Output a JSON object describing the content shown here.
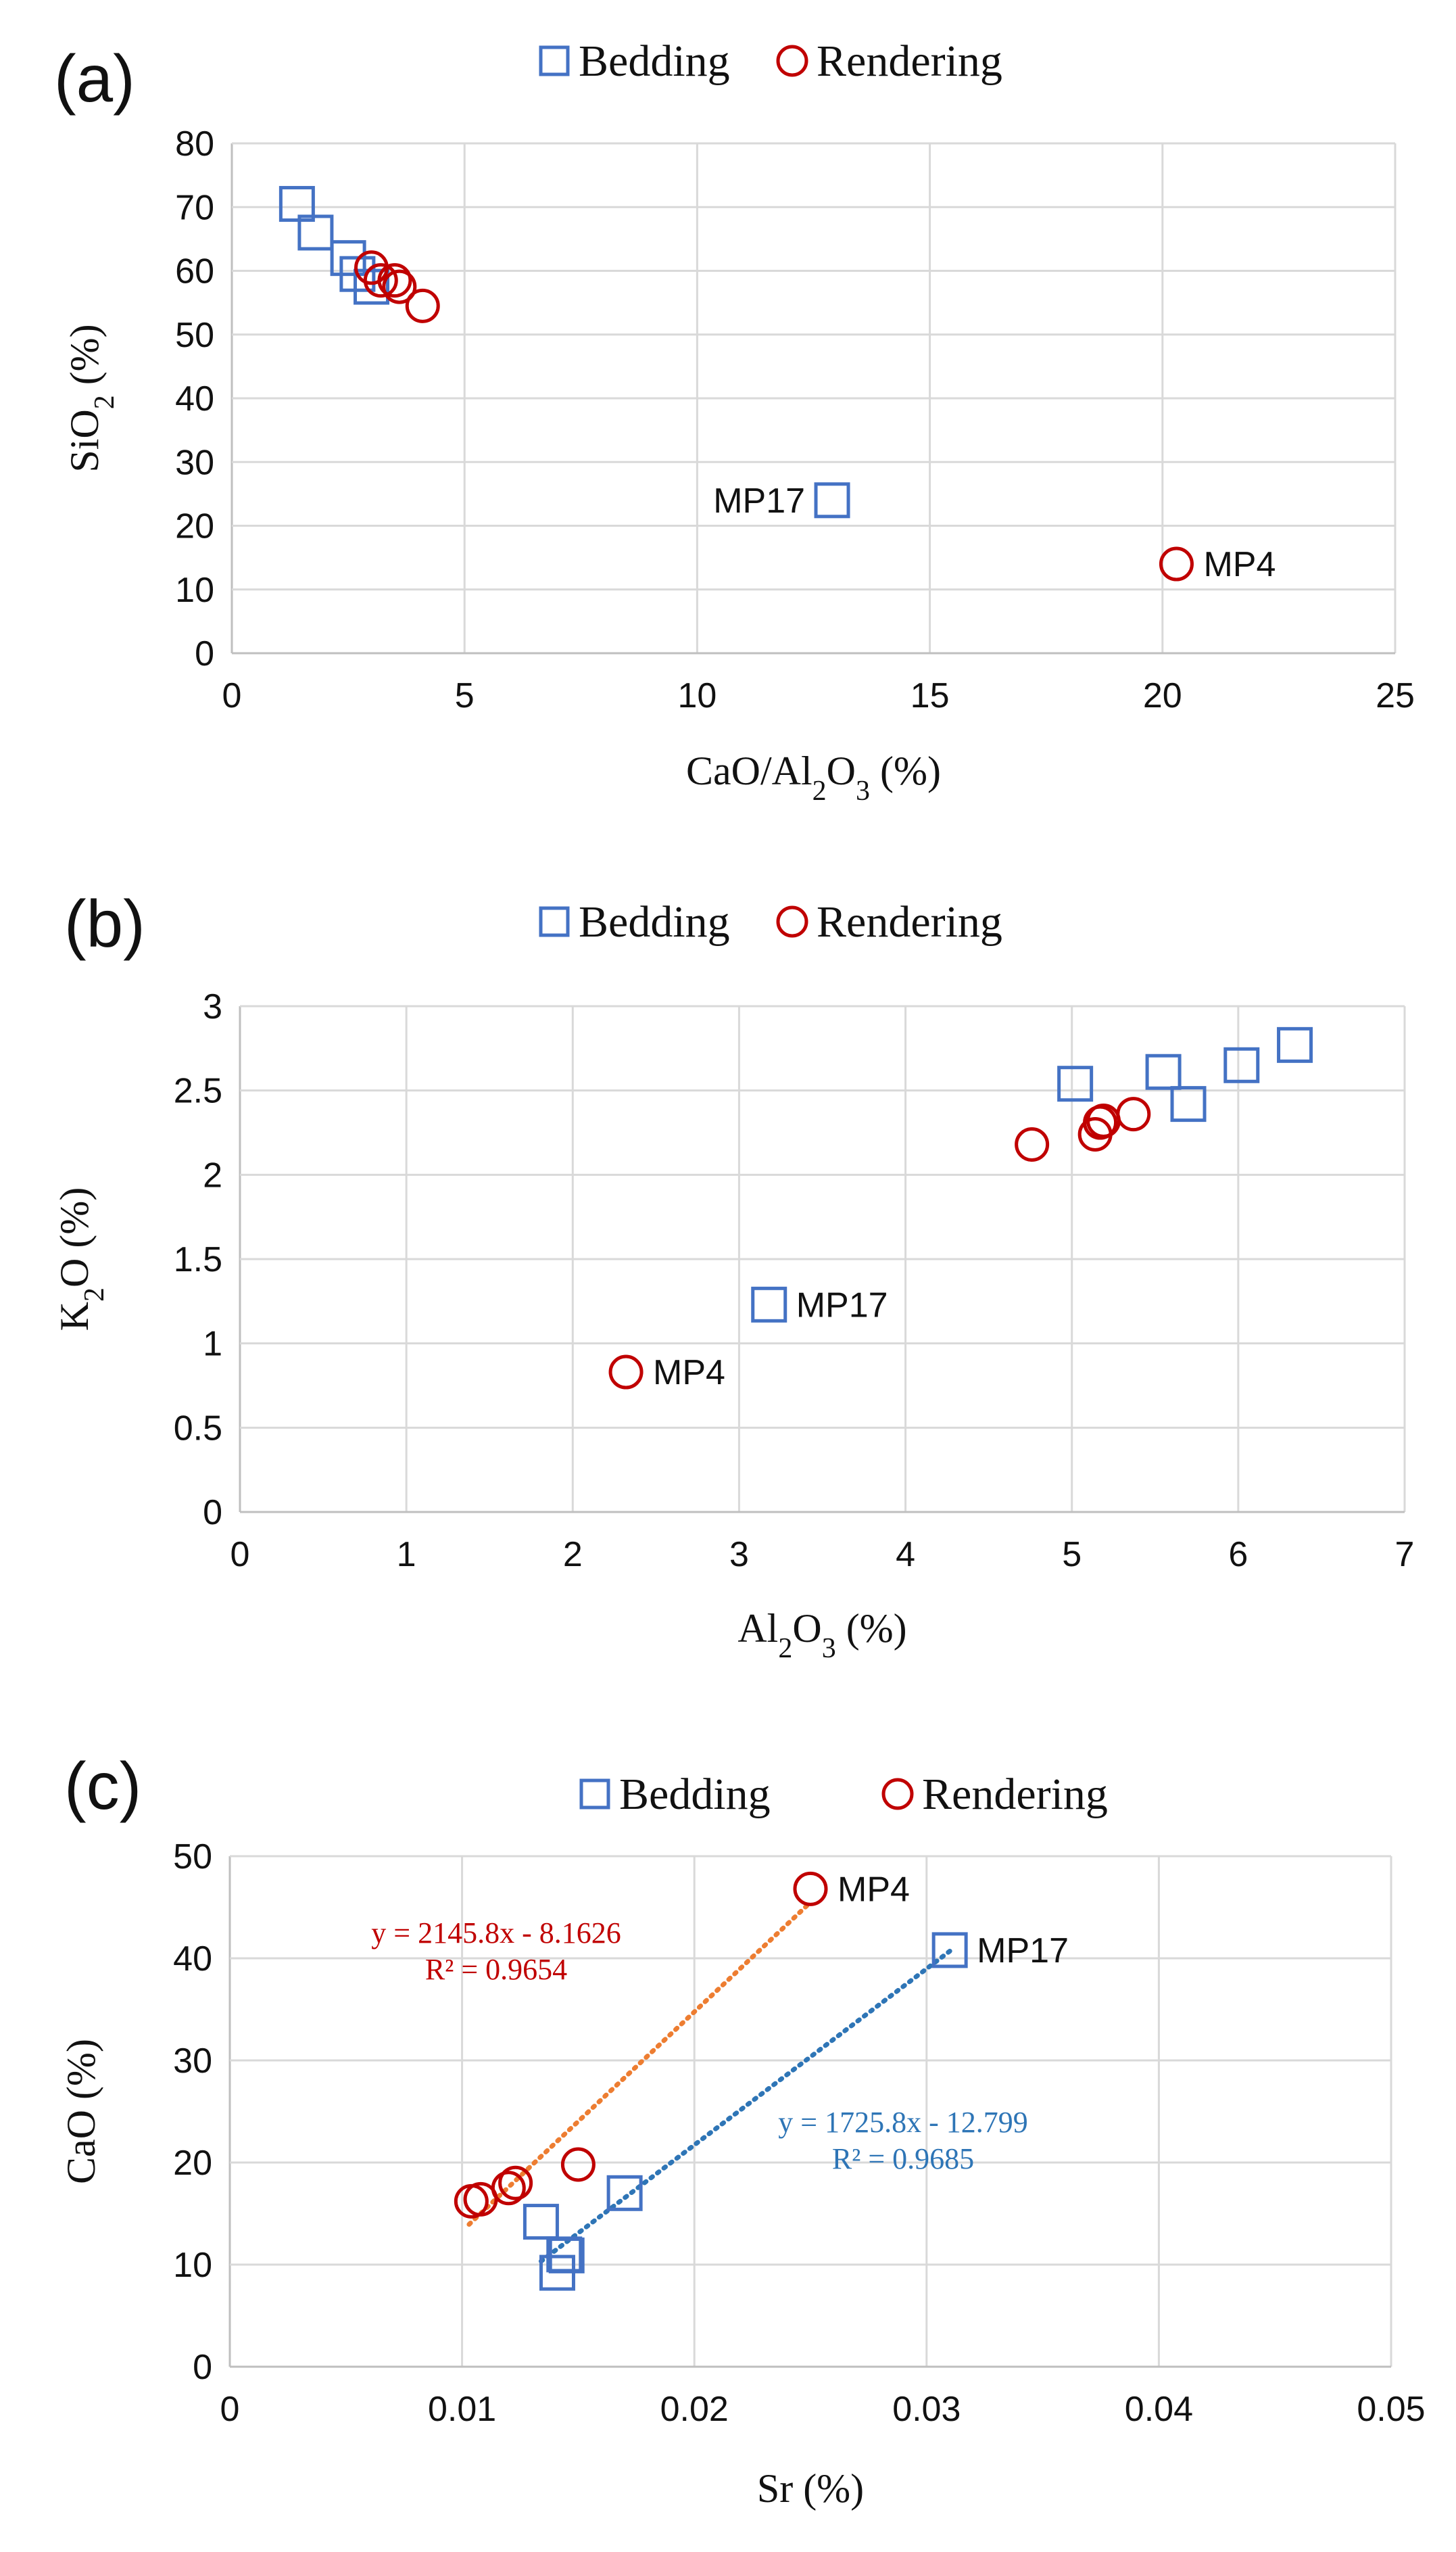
{
  "chart_data": [
    {
      "type": "scatter",
      "panel": "(a)",
      "legend": {
        "placement": "top-center",
        "items": [
          "Bedding",
          "Rendering"
        ]
      },
      "xlabel": {
        "pre": "CaO/Al",
        "sub": "2",
        "mid": "O",
        "sub2": "3",
        "post": " (%)"
      },
      "ylabel": {
        "pre": "SiO",
        "sub": "2",
        "post": " (%)"
      },
      "xlim": [
        0,
        25
      ],
      "ylim": [
        0,
        80
      ],
      "xticks": [
        "0",
        "5",
        "10",
        "15",
        "20",
        "25"
      ],
      "yticks": [
        "0",
        "10",
        "20",
        "30",
        "40",
        "50",
        "60",
        "70",
        "80"
      ],
      "grid": true,
      "series": [
        {
          "name": "Bedding",
          "marker": "square",
          "color": "#4472c4",
          "points": [
            [
              1.4,
              70.5
            ],
            [
              1.8,
              66
            ],
            [
              2.5,
              62
            ],
            [
              2.7,
              59.5
            ],
            [
              3.0,
              57.5
            ],
            [
              12.9,
              24
            ]
          ]
        },
        {
          "name": "Rendering",
          "marker": "circle",
          "color": "#c00000",
          "points": [
            [
              3.0,
              60.5
            ],
            [
              3.2,
              58.5
            ],
            [
              3.5,
              58.5
            ],
            [
              3.6,
              57.5
            ],
            [
              4.1,
              54.5
            ],
            [
              20.3,
              14
            ]
          ]
        }
      ],
      "annotations": [
        {
          "text": "MP17",
          "x": 12.9,
          "y": 24,
          "anchor": "end"
        },
        {
          "text": "MP4",
          "x": 20.3,
          "y": 14,
          "anchor": "start"
        }
      ]
    },
    {
      "type": "scatter",
      "panel": "(b)",
      "legend": {
        "placement": "top-center",
        "items": [
          "Bedding",
          "Rendering"
        ]
      },
      "xlabel": {
        "pre": "Al",
        "sub": "2",
        "mid": "O",
        "sub2": "3",
        "post": " (%)"
      },
      "ylabel": {
        "pre": "K",
        "sub": "2",
        "post": "O (%)"
      },
      "xlim": [
        0,
        7
      ],
      "ylim": [
        0,
        3
      ],
      "xticks": [
        "0",
        "1",
        "2",
        "3",
        "4",
        "5",
        "6",
        "7"
      ],
      "yticks": [
        "0",
        "0.5",
        "1",
        "1.5",
        "2",
        "2.5",
        "3"
      ],
      "grid": true,
      "series": [
        {
          "name": "Bedding",
          "marker": "square",
          "color": "#4472c4",
          "points": [
            [
              5.02,
              2.54
            ],
            [
              5.55,
              2.61
            ],
            [
              5.7,
              2.42
            ],
            [
              6.02,
              2.65
            ],
            [
              6.34,
              2.77
            ],
            [
              3.18,
              1.23
            ]
          ]
        },
        {
          "name": "Rendering",
          "marker": "circle",
          "color": "#c00000",
          "points": [
            [
              4.76,
              2.18
            ],
            [
              5.14,
              2.24
            ],
            [
              5.17,
              2.31
            ],
            [
              5.19,
              2.32
            ],
            [
              5.37,
              2.36
            ],
            [
              2.32,
              0.83
            ]
          ]
        }
      ],
      "annotations": [
        {
          "text": "MP17",
          "x": 3.18,
          "y": 1.23,
          "anchor": "start"
        },
        {
          "text": "MP4",
          "x": 2.32,
          "y": 0.83,
          "anchor": "start"
        }
      ]
    },
    {
      "type": "scatter",
      "panel": "(c)",
      "legend": {
        "placement": "top-center",
        "items": [
          "Bedding",
          "Rendering"
        ]
      },
      "xlabel": {
        "pre": "Sr",
        "sub": "",
        "mid": "",
        "sub2": "",
        "post": " (%)"
      },
      "ylabel": {
        "pre": "CaO",
        "sub": "",
        "post": " (%)"
      },
      "xlim": [
        0,
        0.05
      ],
      "ylim": [
        0,
        50
      ],
      "xticks": [
        "0",
        "0.01",
        "0.02",
        "0.03",
        "0.04",
        "0.05"
      ],
      "yticks": [
        "0",
        "10",
        "20",
        "30",
        "40",
        "50"
      ],
      "grid": true,
      "series": [
        {
          "name": "Bedding",
          "marker": "square",
          "color": "#4472c4",
          "points": [
            [
              0.0134,
              14.2
            ],
            [
              0.0141,
              9.2
            ],
            [
              0.0144,
              11
            ],
            [
              0.0145,
              10.9
            ],
            [
              0.017,
              17
            ],
            [
              0.031,
              40.8
            ]
          ]
        },
        {
          "name": "Rendering",
          "marker": "circle",
          "color": "#c00000",
          "points": [
            [
              0.0104,
              16.2
            ],
            [
              0.0108,
              16.4
            ],
            [
              0.012,
              17.5
            ],
            [
              0.0123,
              18
            ],
            [
              0.015,
              19.8
            ],
            [
              0.025,
              46.8
            ]
          ]
        }
      ],
      "trendlines": [
        {
          "series": "Rendering",
          "color": "#ed7d31",
          "x": [
            0.0103,
            0.025
          ],
          "equation": "y = 2145.8x - 8.1626",
          "r2": "R² = 0.9654",
          "label_color": "#c00000"
        },
        {
          "series": "Bedding",
          "color": "#2e75b6",
          "x": [
            0.0134,
            0.031
          ],
          "equation": "y = 1725.8x - 12.799",
          "r2": "R² = 0.9685",
          "label_color": "#2e75b6"
        }
      ],
      "annotations": [
        {
          "text": "MP4",
          "x": 0.025,
          "y": 46.8,
          "anchor": "start"
        },
        {
          "text": "MP17",
          "x": 0.031,
          "y": 40.8,
          "anchor": "start"
        }
      ]
    }
  ]
}
